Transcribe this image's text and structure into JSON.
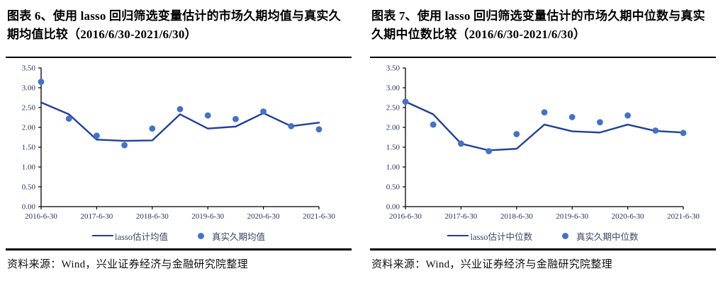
{
  "page": {
    "footer_source": "资料来源：Wind，兴业证券经济与金融研究院整理"
  },
  "colors": {
    "line_series": "#21409a",
    "scatter_series": "#4472c4",
    "axis": "#000000",
    "tick_label": "#24355e"
  },
  "chart_data": [
    {
      "type": "line",
      "title": "图表 6、使用 lasso 回归筛选变量估计的市场久期均值与真实久期均值比较（2016/6/30-2021/6/30）",
      "ylim": [
        0,
        3.5
      ],
      "y_tick_labels": [
        "0.00",
        "0.50",
        "1.00",
        "1.50",
        "2.00",
        "2.50",
        "3.00",
        "3.50"
      ],
      "x_tick_labels": [
        "2016-6-30",
        "2017-6-30",
        "2018-6-30",
        "2019-6-30",
        "2020-6-30",
        "2021-6-30"
      ],
      "x_tick_point_indices": [
        0,
        2,
        4,
        6,
        8,
        10
      ],
      "points_per_series": 11,
      "grid": false,
      "legend_position": "bottom",
      "series": [
        {
          "name": "lasso估计均值",
          "style": "line",
          "color": "#21409a",
          "values": [
            2.63,
            2.33,
            1.69,
            1.66,
            1.67,
            2.33,
            1.97,
            2.02,
            2.36,
            2.03,
            2.12
          ]
        },
        {
          "name": "真实久期均值",
          "style": "scatter",
          "color": "#4472c4",
          "values": [
            3.15,
            2.22,
            1.79,
            1.55,
            1.97,
            2.46,
            2.3,
            2.21,
            2.4,
            2.03,
            1.95
          ]
        }
      ]
    },
    {
      "type": "line",
      "title": "图表 7、使用 lasso 回归筛选变量估计的市场久期中位数与真实久期中位数比较（2016/6/30-2021/6/30）",
      "ylim": [
        0,
        3.5
      ],
      "y_tick_labels": [
        "0.00",
        "0.50",
        "1.00",
        "1.50",
        "2.00",
        "2.50",
        "3.00",
        "3.50"
      ],
      "x_tick_labels": [
        "2016-6-30",
        "2017-6-30",
        "2018-6-30",
        "2019-6-30",
        "2020-6-30",
        "2021-6-30"
      ],
      "x_tick_point_indices": [
        0,
        2,
        4,
        6,
        8,
        10
      ],
      "points_per_series": 11,
      "grid": false,
      "legend_position": "bottom",
      "series": [
        {
          "name": "lasso估计中位数",
          "style": "line",
          "color": "#21409a",
          "values": [
            2.65,
            2.33,
            1.59,
            1.42,
            1.46,
            2.07,
            1.9,
            1.87,
            2.07,
            1.91,
            1.87
          ]
        },
        {
          "name": "真实久期中位数",
          "style": "scatter",
          "color": "#4472c4",
          "values": [
            2.65,
            2.07,
            1.59,
            1.4,
            1.83,
            2.38,
            2.26,
            2.13,
            2.3,
            1.92,
            1.86
          ]
        }
      ]
    }
  ]
}
